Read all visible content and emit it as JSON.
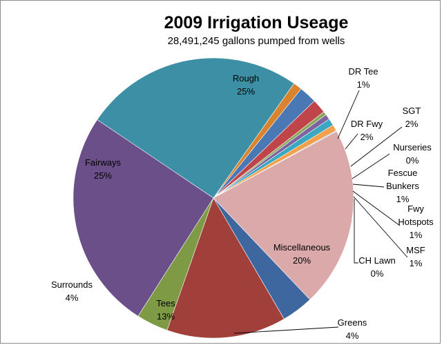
{
  "chart_data": {
    "type": "pie",
    "title": "2009 Irrigation Useage",
    "subtitle": "28,491,245 gallons pumped from wells",
    "slices": [
      {
        "name": "Rough",
        "name_lines": [
          "Rough"
        ],
        "percent_label": "25%",
        "value": 24.8,
        "color": "#3c8fa4"
      },
      {
        "name": "DR Tee",
        "name_lines": [
          "DR Tee"
        ],
        "percent_label": "1%",
        "value": 1.0,
        "color": "#d9832e"
      },
      {
        "name": "DR Fwy",
        "name_lines": [
          "DR Fwy"
        ],
        "percent_label": "2%",
        "value": 2.0,
        "color": "#4a78b5"
      },
      {
        "name": "SGT",
        "name_lines": [
          "SGT"
        ],
        "percent_label": "2%",
        "value": 1.6,
        "color": "#c0454b"
      },
      {
        "name": "Nurseries",
        "name_lines": [
          "Nurseries"
        ],
        "percent_label": "0%",
        "value": 0.4,
        "color": "#8aa85a"
      },
      {
        "name": "Fescue Bunkers",
        "name_lines": [
          "Fescue",
          "Bunkers"
        ],
        "percent_label": "1%",
        "value": 0.6,
        "color": "#7d63a0"
      },
      {
        "name": "Fwy Hotspots",
        "name_lines": [
          "Fwy",
          "Hotspots"
        ],
        "percent_label": "1%",
        "value": 0.8,
        "color": "#3aa8c0"
      },
      {
        "name": "MSF",
        "name_lines": [
          "MSF"
        ],
        "percent_label": "1%",
        "value": 0.7,
        "color": "#f3a04a"
      },
      {
        "name": "CH Lawn",
        "name_lines": [
          "CH Lawn"
        ],
        "percent_label": "0%",
        "value": 0.1,
        "color": "#9db5df"
      },
      {
        "name": "Miscellaneous",
        "name_lines": [
          "Miscellaneous"
        ],
        "percent_label": "20%",
        "value": 20.4,
        "color": "#dba9a9"
      },
      {
        "name": "Greens",
        "name_lines": [
          "Greens"
        ],
        "percent_label": "4%",
        "value": 3.6,
        "color": "#3e67a0"
      },
      {
        "name": "Tees",
        "name_lines": [
          "Tees"
        ],
        "percent_label": "13%",
        "value": 13.5,
        "color": "#a13f3b"
      },
      {
        "name": "Surrounds",
        "name_lines": [
          "Surrounds"
        ],
        "percent_label": "4%",
        "value": 3.6,
        "color": "#7e9a44"
      },
      {
        "name": "Fairways",
        "name_lines": [
          "Fairways"
        ],
        "percent_label": "25%",
        "value": 24.9,
        "color": "#6a4f89"
      }
    ]
  }
}
